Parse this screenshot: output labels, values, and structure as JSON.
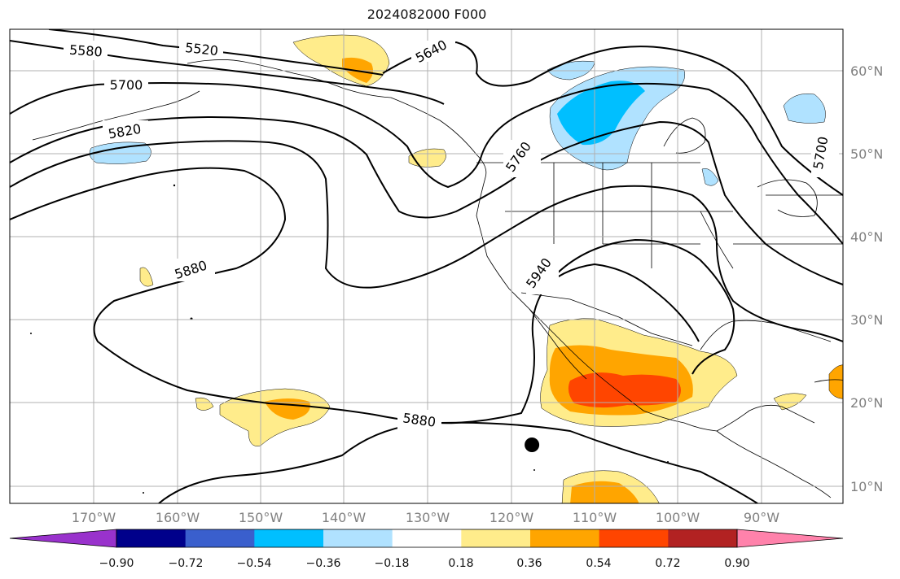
{
  "figure": {
    "title": "2024082000 F000"
  },
  "map": {
    "lon_labels": [
      "170°W",
      "160°W",
      "150°W",
      "140°W",
      "130°W",
      "120°W",
      "110°W",
      "100°W",
      "90°W"
    ],
    "lat_labels": [
      "60°N",
      "50°N",
      "40°N",
      "30°N",
      "20°N",
      "10°N"
    ],
    "contour_labels": [
      "5580",
      "5520",
      "5640",
      "5700",
      "5820",
      "5760",
      "5700",
      "5880",
      "5940",
      "5880"
    ],
    "point_marker": {
      "lon": -117.5,
      "lat": 15.0
    },
    "colors": {
      "contour": "#000000",
      "grid": "#b0b0b0",
      "coast": "#000000"
    }
  },
  "colorbar": {
    "labels": [
      "−0.90",
      "−0.72",
      "−0.54",
      "−0.36",
      "−0.18",
      "0.18",
      "0.36",
      "0.54",
      "0.72",
      "0.90"
    ],
    "colors": [
      "#9932cc",
      "#00008b",
      "#3a5fcd",
      "#00bfff",
      "#b0e2ff",
      "#ffffff",
      "#ffec8b",
      "#ffa500",
      "#ff4500",
      "#b22222",
      "#ff82ab"
    ]
  }
}
